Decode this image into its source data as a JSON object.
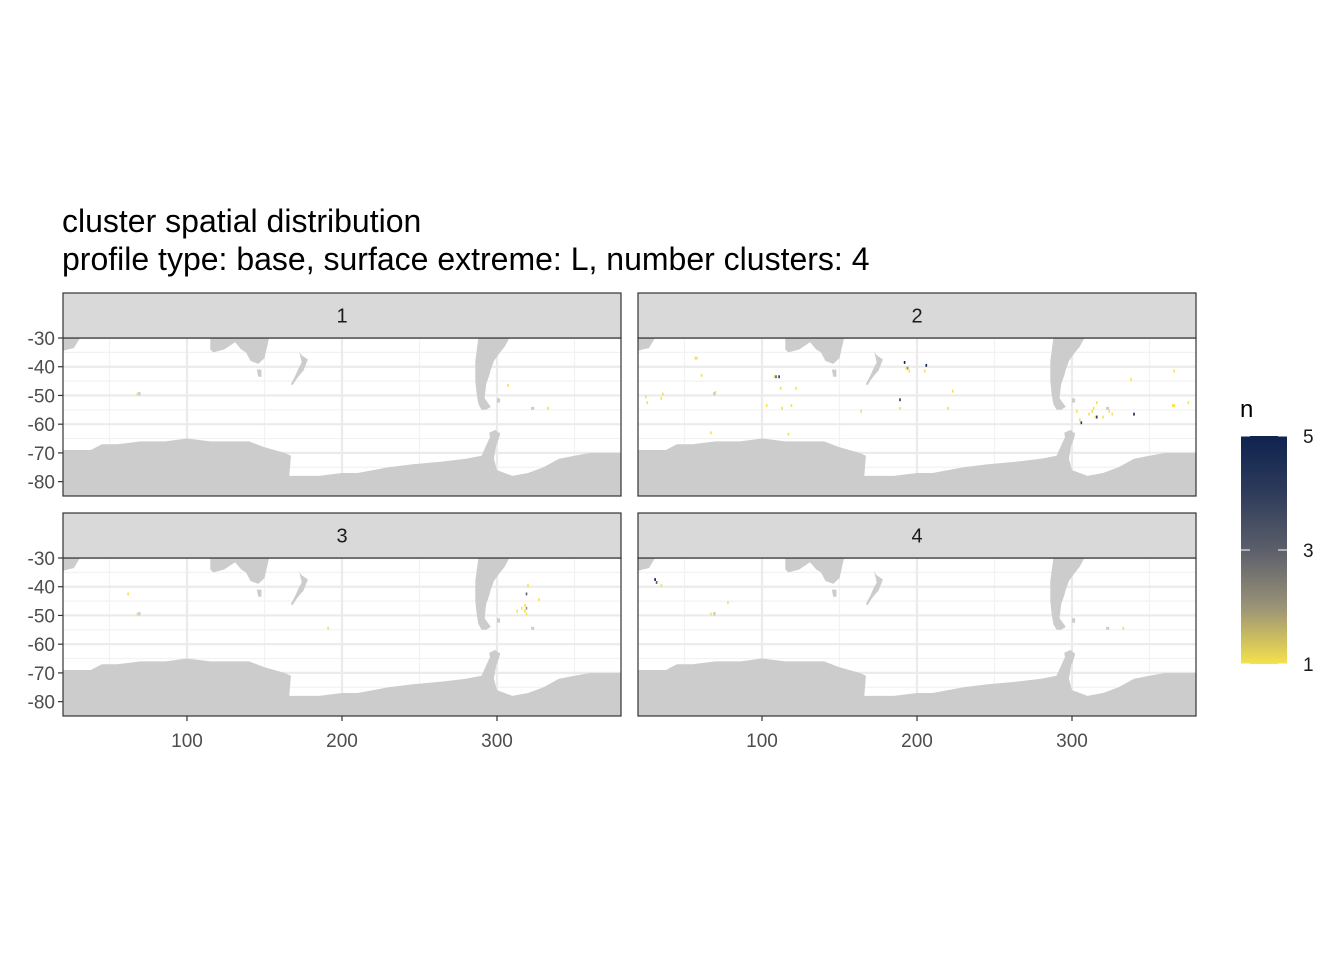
{
  "chart_data": {
    "type": "heatmap",
    "title": "cluster spatial distribution",
    "subtitle": "profile type: base, surface extreme: L, number clusters: 4",
    "xlabel": "",
    "ylabel": "",
    "xlim": [
      20,
      380
    ],
    "ylim": [
      -85,
      -30
    ],
    "x_ticks": [
      100,
      200,
      300
    ],
    "y_ticks": [
      -30,
      -40,
      -50,
      -60,
      -70,
      -80
    ],
    "grid": true,
    "legend": {
      "title": "n",
      "position": "right",
      "min": 1,
      "max": 5,
      "ticks": [
        1,
        3,
        5
      ],
      "colors": [
        "#f5e14d",
        "#9a9377",
        "#5c5f6b",
        "#2e3b5a",
        "#0e2350"
      ]
    },
    "land_color": "#cccccc",
    "panels": [
      {
        "label": "1",
        "cells": [
          {
            "lon": 68,
            "lat": -49.5,
            "n": 1
          },
          {
            "lon": 307,
            "lat": -46.5,
            "n": 1
          },
          {
            "lon": 333,
            "lat": -54.5,
            "n": 1
          }
        ]
      },
      {
        "label": "2",
        "cells": [
          {
            "lon": 57,
            "lat": -37,
            "n": 1
          },
          {
            "lon": 58,
            "lat": -37,
            "n": 1
          },
          {
            "lon": 61,
            "lat": -43,
            "n": 1
          },
          {
            "lon": 25,
            "lat": -50.5,
            "n": 1
          },
          {
            "lon": 26,
            "lat": -52.5,
            "n": 1
          },
          {
            "lon": 35,
            "lat": -51,
            "n": 1
          },
          {
            "lon": 36,
            "lat": -49.5,
            "n": 1
          },
          {
            "lon": 70,
            "lat": -49,
            "n": 1
          },
          {
            "lon": 67,
            "lat": -63,
            "n": 1
          },
          {
            "lon": 108,
            "lat": -43.5,
            "n": 1
          },
          {
            "lon": 109,
            "lat": -43.5,
            "n": 3
          },
          {
            "lon": 111,
            "lat": -43.5,
            "n": 4
          },
          {
            "lon": 112,
            "lat": -47.5,
            "n": 1
          },
          {
            "lon": 122,
            "lat": -47.5,
            "n": 1
          },
          {
            "lon": 103,
            "lat": -53.5,
            "n": 1
          },
          {
            "lon": 113,
            "lat": -54.5,
            "n": 1
          },
          {
            "lon": 119,
            "lat": -53.5,
            "n": 1
          },
          {
            "lon": 117,
            "lat": -63.5,
            "n": 1
          },
          {
            "lon": 164,
            "lat": -55.5,
            "n": 1
          },
          {
            "lon": 192,
            "lat": -38.5,
            "n": 5
          },
          {
            "lon": 193,
            "lat": -40.5,
            "n": 1
          },
          {
            "lon": 194,
            "lat": -40.5,
            "n": 2
          },
          {
            "lon": 195,
            "lat": -41.5,
            "n": 1
          },
          {
            "lon": 206,
            "lat": -39.5,
            "n": 5
          },
          {
            "lon": 205,
            "lat": -41.5,
            "n": 1
          },
          {
            "lon": 189,
            "lat": -51.5,
            "n": 4
          },
          {
            "lon": 189,
            "lat": -54.5,
            "n": 1
          },
          {
            "lon": 223,
            "lat": -48.5,
            "n": 1
          },
          {
            "lon": 220,
            "lat": -54.5,
            "n": 1
          },
          {
            "lon": 303,
            "lat": -55.5,
            "n": 1
          },
          {
            "lon": 305,
            "lat": -58.5,
            "n": 1
          },
          {
            "lon": 306,
            "lat": -59.5,
            "n": 4
          },
          {
            "lon": 311,
            "lat": -56.5,
            "n": 1
          },
          {
            "lon": 313,
            "lat": -55.5,
            "n": 1
          },
          {
            "lon": 314,
            "lat": -54.5,
            "n": 1
          },
          {
            "lon": 316,
            "lat": -52.5,
            "n": 1
          },
          {
            "lon": 315,
            "lat": -57.5,
            "n": 1
          },
          {
            "lon": 316,
            "lat": -57.5,
            "n": 4
          },
          {
            "lon": 320,
            "lat": -57.5,
            "n": 1
          },
          {
            "lon": 324,
            "lat": -55.5,
            "n": 1
          },
          {
            "lon": 326,
            "lat": -56.5,
            "n": 1
          },
          {
            "lon": 340,
            "lat": -56.5,
            "n": 5
          },
          {
            "lon": 338,
            "lat": -44.5,
            "n": 1
          },
          {
            "lon": 366,
            "lat": -41.5,
            "n": 1
          },
          {
            "lon": 365,
            "lat": -53.5,
            "n": 1
          },
          {
            "lon": 366,
            "lat": -53.5,
            "n": 1
          },
          {
            "lon": 375,
            "lat": -52.5,
            "n": 1
          }
        ]
      },
      {
        "label": "3",
        "cells": [
          {
            "lon": 62,
            "lat": -42.5,
            "n": 1
          },
          {
            "lon": 68,
            "lat": -49.5,
            "n": 1
          },
          {
            "lon": 191,
            "lat": -54.5,
            "n": 1
          },
          {
            "lon": 313,
            "lat": -48.5,
            "n": 1
          },
          {
            "lon": 316,
            "lat": -47.5,
            "n": 1
          },
          {
            "lon": 318,
            "lat": -48.5,
            "n": 1
          },
          {
            "lon": 318,
            "lat": -46.5,
            "n": 1
          },
          {
            "lon": 319,
            "lat": -42.5,
            "n": 3
          },
          {
            "lon": 319,
            "lat": -47.5,
            "n": 2
          },
          {
            "lon": 319,
            "lat": -49.5,
            "n": 1
          },
          {
            "lon": 320,
            "lat": -39.5,
            "n": 1
          },
          {
            "lon": 327,
            "lat": -44.5,
            "n": 1
          }
        ]
      },
      {
        "label": "4",
        "cells": [
          {
            "lon": 31,
            "lat": -37.5,
            "n": 5
          },
          {
            "lon": 32,
            "lat": -38.5,
            "n": 3
          },
          {
            "lon": 35,
            "lat": -39.5,
            "n": 1
          },
          {
            "lon": 67,
            "lat": -49.5,
            "n": 1
          },
          {
            "lon": 78,
            "lat": -45.5,
            "n": 1
          },
          {
            "lon": 333,
            "lat": -54.5,
            "n": 1
          }
        ]
      }
    ]
  }
}
